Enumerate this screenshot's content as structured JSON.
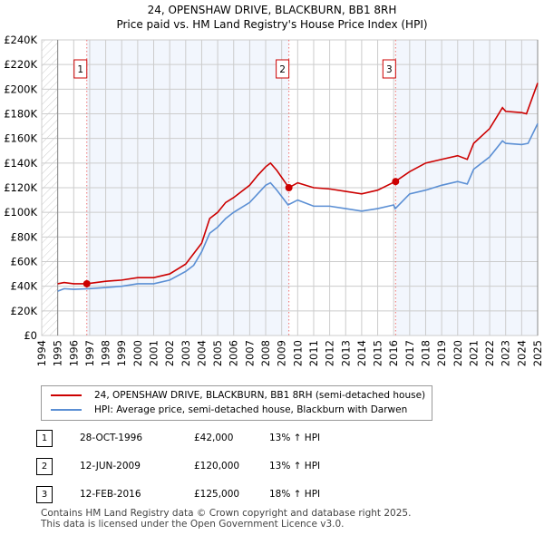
{
  "chart_data": {
    "type": "line",
    "title": "24, OPENSHAW DRIVE, BLACKBURN, BB1 8RH",
    "subtitle": "Price paid vs. HM Land Registry's House Price Index (HPI)",
    "xlim": [
      1994,
      2025
    ],
    "ylim": [
      0,
      240000
    ],
    "x_ticks": [
      "1994",
      "1995",
      "1996",
      "1997",
      "1998",
      "1999",
      "2000",
      "2001",
      "2002",
      "2003",
      "2004",
      "2005",
      "2006",
      "2007",
      "2008",
      "2009",
      "2010",
      "2011",
      "2012",
      "2013",
      "2014",
      "2015",
      "2016",
      "2017",
      "2018",
      "2019",
      "2020",
      "2021",
      "2022",
      "2023",
      "2024",
      "2025"
    ],
    "y_ticks": [
      "£0",
      "£20K",
      "£40K",
      "£60K",
      "£80K",
      "£100K",
      "£120K",
      "£140K",
      "£160K",
      "£180K",
      "£200K",
      "£220K",
      "£240K"
    ],
    "series": [
      {
        "name": "24, OPENSHAW DRIVE, BLACKBURN, BB1 8RH (semi-detached house)",
        "color": "#cc0000",
        "x": [
          1995,
          1995.4,
          1996,
          1996.8,
          1998,
          1999,
          2000,
          2001,
          2002,
          2003,
          2004,
          2004.5,
          2005,
          2005.5,
          2006,
          2007,
          2007.5,
          2008,
          2008.3,
          2008.7,
          2009.45,
          2010,
          2011,
          2012,
          2013,
          2014,
          2015,
          2016.1,
          2017,
          2018,
          2019,
          2020,
          2020.6,
          2021,
          2022,
          2022.8,
          2023,
          2024,
          2024.3,
          2025
        ],
        "y": [
          42000,
          43000,
          42000,
          42000,
          44000,
          45000,
          47000,
          47000,
          50000,
          58000,
          75000,
          95000,
          100000,
          108000,
          112000,
          122000,
          130000,
          137000,
          140000,
          134000,
          120000,
          124000,
          120000,
          119000,
          117000,
          115000,
          118000,
          125000,
          133000,
          140000,
          143000,
          146000,
          143000,
          156000,
          168000,
          185000,
          182000,
          181000,
          180000,
          205000
        ]
      },
      {
        "name": "HPI: Average price, semi-detached house, Blackburn with Darwen",
        "color": "#5b8fd4",
        "x": [
          1995,
          1995.4,
          1996,
          1997,
          1998,
          1999,
          2000,
          2001,
          2002,
          2003,
          2003.5,
          2004,
          2004.5,
          2005,
          2005.5,
          2006,
          2007,
          2007.5,
          2008,
          2008.3,
          2008.7,
          2009.4,
          2010,
          2011,
          2012,
          2013,
          2014,
          2015,
          2016,
          2016.1,
          2017,
          2018,
          2019,
          2020,
          2020.6,
          2021,
          2022,
          2022.8,
          2023,
          2024,
          2024.4,
          2025
        ],
        "y": [
          36000,
          38000,
          37500,
          38000,
          39000,
          40000,
          42000,
          42000,
          45000,
          52000,
          57000,
          68000,
          83000,
          88000,
          95000,
          100000,
          108000,
          115000,
          122000,
          124000,
          118000,
          106000,
          110000,
          105000,
          105000,
          103000,
          101000,
          103000,
          106000,
          103000,
          115000,
          118000,
          122000,
          125000,
          123000,
          135000,
          145000,
          158000,
          156000,
          155000,
          156000,
          172000
        ]
      }
    ],
    "sales": [
      {
        "label": "1",
        "x": 1996.82,
        "y": 42000
      },
      {
        "label": "2",
        "x": 2009.45,
        "y": 120000
      },
      {
        "label": "3",
        "x": 2016.12,
        "y": 125000
      }
    ]
  },
  "legend": {
    "red": "24, OPENSHAW DRIVE, BLACKBURN, BB1 8RH (semi-detached house)",
    "blue": "HPI: Average price, semi-detached house, Blackburn with Darwen"
  },
  "table": [
    {
      "n": "1",
      "date": "28-OCT-1996",
      "price": "£42,000",
      "hpi": "13% ↑ HPI"
    },
    {
      "n": "2",
      "date": "12-JUN-2009",
      "price": "£120,000",
      "hpi": "13% ↑ HPI"
    },
    {
      "n": "3",
      "date": "12-FEB-2016",
      "price": "£125,000",
      "hpi": "18% ↑ HPI"
    }
  ],
  "footer": {
    "line1": "Contains HM Land Registry data © Crown copyright and database right 2025.",
    "line2": "This data is licensed under the Open Government Licence v3.0."
  }
}
